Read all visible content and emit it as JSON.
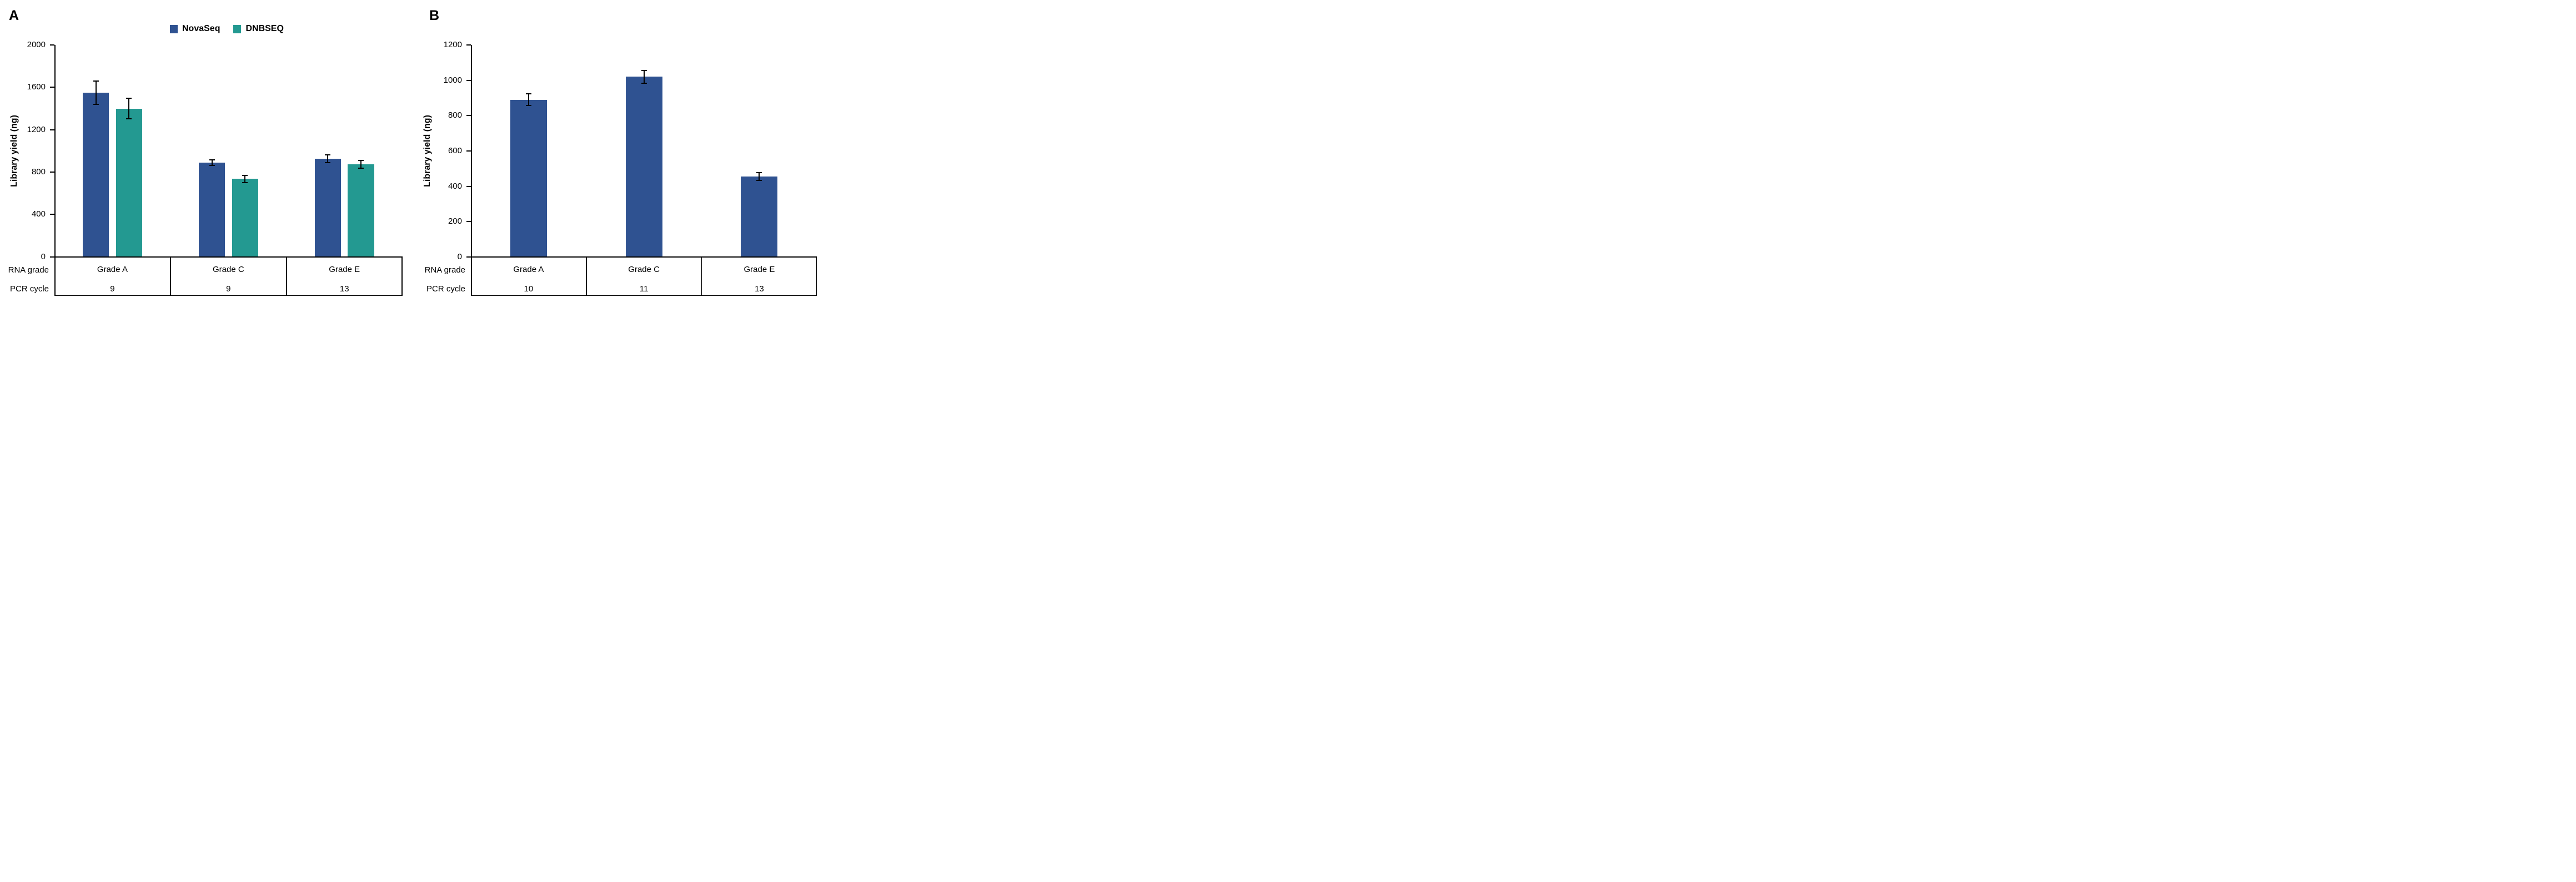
{
  "figure_type": "two-panel grouped bar chart with x-axis data table",
  "chart_data": [
    {
      "type": "bar",
      "panel_label": "A",
      "ylabel": "Library yield (ng)",
      "ylim": [
        0,
        2000
      ],
      "ystep": 400,
      "yticks": [
        0,
        400,
        800,
        1200,
        1600,
        2000
      ],
      "categories": [
        "Grade A",
        "Grade C",
        "Grade E"
      ],
      "row_headers": [
        "RNA grade",
        "PCR cycle"
      ],
      "pcr_cycles": [
        "9",
        "9",
        "13"
      ],
      "legend_position": "top-center",
      "grid": false,
      "error_bars": true,
      "series": [
        {
          "name": "NovaSeq",
          "color": "#2F5291",
          "values": [
            1550,
            890,
            925
          ],
          "errors": [
            110,
            28,
            38
          ]
        },
        {
          "name": "DNBSEQ",
          "color": "#239991",
          "values": [
            1400,
            735,
            875
          ],
          "errors": [
            95,
            33,
            37
          ]
        }
      ]
    },
    {
      "type": "bar",
      "panel_label": "B",
      "ylabel": "Library yield (ng)",
      "ylim": [
        0,
        1200
      ],
      "ystep": 200,
      "yticks": [
        0,
        200,
        400,
        600,
        800,
        1000,
        1200
      ],
      "categories": [
        "Grade A",
        "Grade C",
        "Grade E"
      ],
      "row_headers": [
        "RNA grade",
        "PCR cycle"
      ],
      "pcr_cycles": [
        "10",
        "11",
        "13"
      ],
      "legend_position": "none",
      "grid": false,
      "error_bars": true,
      "series": [
        {
          "name": "NovaSeq",
          "color": "#2F5291",
          "values": [
            890,
            1020,
            455
          ],
          "errors": [
            32,
            36,
            23
          ]
        }
      ]
    }
  ]
}
